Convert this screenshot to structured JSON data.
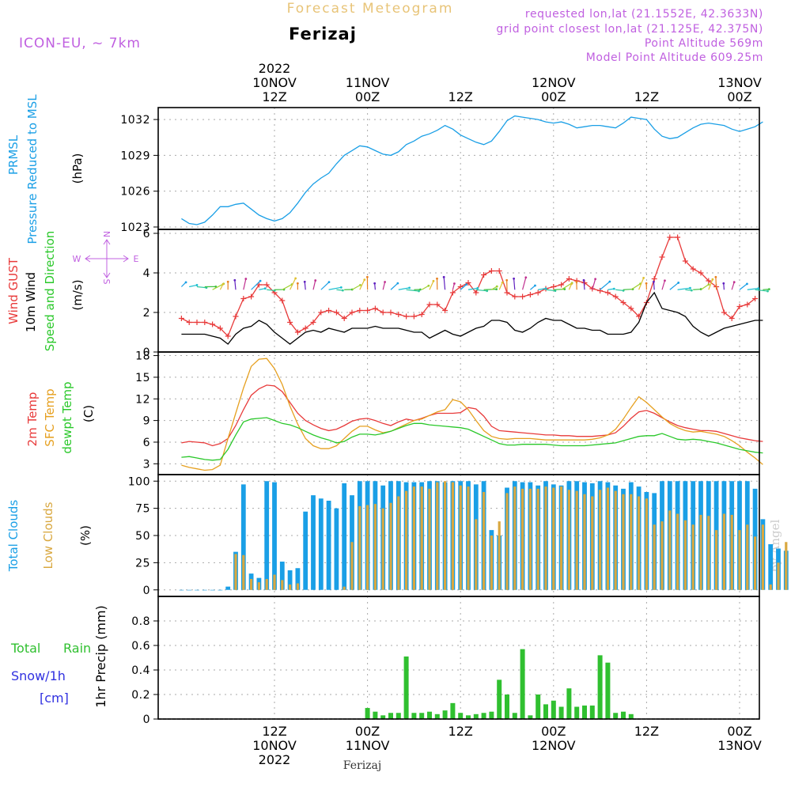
{
  "header": {
    "title": "Forecast Meteogram",
    "location": "Ferizaj",
    "model": "ICON-EU, ~ 7km",
    "requested": "requested lon,lat (21.1552E, 42.3633N)",
    "grid_point": "grid point closest lon,lat (21.125E, 42.375N)",
    "point_altitude": "Point Altitude 569m",
    "model_altitude": "Model Point Altitude 609.25m",
    "credit": "by Angel",
    "footer_location": "Ferizaj"
  },
  "colors": {
    "pressure": "#1a9fe6",
    "gust": "#e83a3a",
    "wind": "#000000",
    "temp": "#e83a3a",
    "sfc": "#e6a020",
    "dew": "#2ac82a",
    "total_clouds": "#1a9fe6",
    "low_clouds": "#d9a840",
    "rain": "#30c030",
    "snow": "#3030e0",
    "purple": "#c060e0",
    "title_gold": "#e8c478"
  },
  "time_axis": {
    "top_labels": [
      {
        "day": "10NOV",
        "hour": "12Z",
        "year": "2022",
        "h": 12
      },
      {
        "day": "11NOV",
        "hour": "00Z",
        "h": 24
      },
      {
        "day": "",
        "hour": "12Z",
        "h": 36
      },
      {
        "day": "12NOV",
        "hour": "00Z",
        "h": 48
      },
      {
        "day": "",
        "hour": "12Z",
        "h": 60
      },
      {
        "day": "13NOV",
        "hour": "00Z",
        "h": 72
      }
    ],
    "bottom_labels": [
      {
        "hour": "12Z",
        "day": "10NOV",
        "year": "2022",
        "h": 12
      },
      {
        "hour": "00Z",
        "day": "11NOV",
        "h": 24
      },
      {
        "hour": "12Z",
        "day": "",
        "h": 36
      },
      {
        "hour": "00Z",
        "day": "12NOV",
        "h": 48
      },
      {
        "hour": "12Z",
        "day": "",
        "h": 60
      },
      {
        "hour": "00Z",
        "day": "13NOV",
        "h": 72
      }
    ]
  },
  "chart_data": [
    {
      "type": "line",
      "title": "PRMSL Pressure Reduced to MSL",
      "ylabel": "(hPa)",
      "label_lines": [
        "PRMSL",
        "Pressure Reduced to MSL"
      ],
      "unit": "(hPa)",
      "ylim": [
        1022.8,
        1033
      ],
      "yticks": [
        1023,
        1026,
        1029,
        1032
      ],
      "x_start_hour": 0,
      "x_step": 1,
      "series": [
        {
          "name": "PRMSL",
          "values": [
            1023.7,
            1023.3,
            1023.2,
            1023.4,
            1024.0,
            1024.7,
            1024.7,
            1024.9,
            1025.0,
            1024.5,
            1024.0,
            1023.7,
            1023.5,
            1023.7,
            1024.2,
            1025.0,
            1025.9,
            1026.6,
            1027.1,
            1027.5,
            1028.3,
            1029.0,
            1029.4,
            1029.8,
            1029.7,
            1029.4,
            1029.1,
            1029.0,
            1029.3,
            1029.9,
            1030.2,
            1030.6,
            1030.8,
            1031.1,
            1031.5,
            1031.2,
            1030.7,
            1030.4,
            1030.1,
            1029.9,
            1030.2,
            1031.0,
            1031.9,
            1032.3,
            1032.2,
            1032.1,
            1032.0,
            1031.8,
            1031.7,
            1031.8,
            1031.6,
            1031.3,
            1031.4,
            1031.5,
            1031.5,
            1031.4,
            1031.3,
            1031.7,
            1032.2,
            1032.1,
            1032.0,
            1031.2,
            1030.6,
            1030.4,
            1030.5,
            1030.9,
            1031.3,
            1031.6,
            1031.7,
            1031.6,
            1031.5,
            1031.2,
            1031.0,
            1031.2,
            1031.4,
            1031.8
          ]
        }
      ]
    },
    {
      "type": "line",
      "title": "Wind GUST / 10m Wind Speed and Direction",
      "ylabel": "(m/s)",
      "label_lines": [
        "Wind GUST",
        "10m Wind",
        "Speed and Direction"
      ],
      "unit": "(m/s)",
      "compass": {
        "n": "N",
        "s": "S",
        "w": "W",
        "e": "E"
      },
      "ylim": [
        0,
        6.2
      ],
      "yticks": [
        0,
        2,
        4,
        6
      ],
      "x_start_hour": 0,
      "x_step": 1,
      "series": [
        {
          "name": "Wind GUST",
          "values": [
            1.7,
            1.5,
            1.5,
            1.5,
            1.4,
            1.2,
            0.8,
            1.8,
            2.7,
            2.8,
            3.4,
            3.4,
            3.0,
            2.6,
            1.5,
            1.0,
            1.2,
            1.5,
            2.0,
            2.1,
            2.0,
            1.7,
            2.0,
            2.1,
            2.1,
            2.2,
            2.0,
            2.0,
            1.9,
            1.8,
            1.8,
            1.9,
            2.4,
            2.4,
            2.1,
            3.0,
            3.3,
            3.5,
            3.0,
            3.9,
            4.1,
            4.1,
            3.0,
            2.8,
            2.8,
            2.9,
            3.0,
            3.2,
            3.3,
            3.4,
            3.7,
            3.6,
            3.5,
            3.2,
            3.1,
            3.0,
            2.8,
            2.5,
            2.2,
            1.8,
            2.5,
            3.7,
            4.8,
            5.8,
            5.8,
            4.6,
            4.2,
            4.0,
            3.6,
            3.3,
            2.0,
            1.7,
            2.3,
            2.4,
            2.7
          ]
        },
        {
          "name": "10m Wind",
          "values": [
            0.9,
            0.9,
            0.9,
            0.9,
            0.8,
            0.7,
            0.4,
            0.9,
            1.2,
            1.3,
            1.6,
            1.4,
            1.0,
            0.7,
            0.4,
            0.7,
            1.0,
            1.1,
            1.0,
            1.2,
            1.1,
            1.0,
            1.2,
            1.2,
            1.2,
            1.3,
            1.2,
            1.2,
            1.2,
            1.1,
            1.0,
            1.0,
            0.7,
            0.9,
            1.1,
            0.9,
            0.8,
            1.0,
            1.2,
            1.3,
            1.6,
            1.6,
            1.5,
            1.1,
            1.0,
            1.2,
            1.5,
            1.7,
            1.6,
            1.6,
            1.4,
            1.2,
            1.2,
            1.1,
            1.1,
            0.9,
            0.9,
            0.9,
            1.0,
            1.5,
            2.5,
            3.0,
            2.2,
            2.1,
            2.0,
            1.8,
            1.3,
            1.0,
            0.8,
            1.0,
            1.2,
            1.3,
            1.4,
            1.5,
            1.6,
            1.6
          ]
        }
      ]
    },
    {
      "type": "line",
      "title": "2m Temp / SFC Temp / dewpt Temp",
      "ylabel": "(C)",
      "label_lines": [
        "2m Temp",
        "SFC Temp",
        "dewpt Temp"
      ],
      "unit": "(C)",
      "ylim": [
        1.5,
        18.5
      ],
      "yticks": [
        3,
        6,
        9,
        12,
        15,
        18
      ],
      "x_start_hour": 0,
      "x_step": 1,
      "series": [
        {
          "name": "2m Temp",
          "values": [
            5.9,
            6.1,
            6.0,
            5.9,
            5.5,
            5.8,
            6.5,
            8.3,
            10.5,
            12.5,
            13.4,
            13.9,
            13.8,
            13.0,
            11.5,
            10.0,
            9.0,
            8.4,
            7.9,
            7.6,
            7.8,
            8.3,
            8.9,
            9.2,
            9.3,
            9.0,
            8.6,
            8.3,
            8.8,
            9.2,
            9.0,
            9.3,
            9.7,
            10.0,
            10.0,
            10.0,
            10.1,
            10.8,
            10.6,
            9.6,
            8.2,
            7.6,
            7.5,
            7.4,
            7.3,
            7.2,
            7.1,
            7.0,
            7.0,
            6.9,
            6.9,
            6.8,
            6.8,
            6.8,
            6.9,
            7.0,
            7.3,
            8.2,
            9.3,
            10.2,
            10.4,
            10.0,
            9.4,
            8.8,
            8.3,
            8.0,
            7.8,
            7.6,
            7.6,
            7.5,
            7.2,
            6.9,
            6.6,
            6.4,
            6.2,
            6.1
          ]
        },
        {
          "name": "SFC Temp",
          "values": [
            2.8,
            2.5,
            2.3,
            2.1,
            2.2,
            2.8,
            6.5,
            10.0,
            13.5,
            16.5,
            17.5,
            17.6,
            16.2,
            14.0,
            11.0,
            8.5,
            6.5,
            5.5,
            5.1,
            5.1,
            5.5,
            6.5,
            7.5,
            8.2,
            8.2,
            7.7,
            7.3,
            7.5,
            8.0,
            8.5,
            9.0,
            9.2,
            9.7,
            10.2,
            10.5,
            11.9,
            11.6,
            10.5,
            9.0,
            7.6,
            6.8,
            6.5,
            6.4,
            6.5,
            6.5,
            6.5,
            6.4,
            6.3,
            6.3,
            6.3,
            6.3,
            6.3,
            6.3,
            6.4,
            6.6,
            7.0,
            7.8,
            9.2,
            10.8,
            12.3,
            11.5,
            10.5,
            9.5,
            8.6,
            8.0,
            7.6,
            7.4,
            7.5,
            7.3,
            7.1,
            6.8,
            6.2,
            5.5,
            4.6,
            3.8,
            2.9
          ]
        },
        {
          "name": "dewpt Temp",
          "values": [
            3.9,
            4.0,
            3.8,
            3.6,
            3.5,
            3.6,
            5.0,
            7.0,
            8.8,
            9.2,
            9.3,
            9.4,
            9.0,
            8.6,
            8.4,
            8.0,
            7.5,
            7.0,
            6.6,
            6.3,
            5.9,
            6.1,
            6.7,
            7.1,
            7.1,
            7.0,
            7.2,
            7.5,
            7.9,
            8.3,
            8.6,
            8.6,
            8.4,
            8.3,
            8.2,
            8.1,
            8.0,
            7.8,
            7.3,
            6.8,
            6.3,
            5.8,
            5.6,
            5.6,
            5.7,
            5.7,
            5.7,
            5.7,
            5.6,
            5.5,
            5.5,
            5.5,
            5.5,
            5.6,
            5.7,
            5.8,
            5.9,
            6.2,
            6.5,
            6.8,
            6.9,
            6.9,
            7.2,
            6.8,
            6.4,
            6.3,
            6.4,
            6.3,
            6.1,
            5.9,
            5.6,
            5.3,
            5.0,
            4.8,
            4.6,
            4.5
          ]
        }
      ]
    },
    {
      "type": "bar",
      "title": "Total Clouds / Low Clouds",
      "ylabel": "(%)",
      "label_lines": [
        "Total Clouds",
        "Low Clouds"
      ],
      "unit": "(%)",
      "ylim": [
        -6,
        106
      ],
      "yticks": [
        0,
        25,
        50,
        75,
        100
      ],
      "x_start_hour": 0,
      "x_step": 1,
      "series": [
        {
          "name": "Total Clouds",
          "values": [
            0,
            0,
            0,
            0,
            0,
            0,
            3,
            35,
            97,
            15,
            11,
            100,
            99,
            26,
            18,
            20,
            72,
            87,
            84,
            82,
            75,
            98,
            87,
            100,
            100,
            100,
            96,
            100,
            100,
            99,
            99,
            99,
            100,
            100,
            99,
            100,
            100,
            100,
            97,
            100,
            55,
            50,
            94,
            100,
            99,
            99,
            96,
            100,
            97,
            96,
            100,
            100,
            99,
            98,
            100,
            99,
            96,
            93,
            99,
            95,
            90,
            89,
            100,
            100,
            100,
            100,
            100,
            100,
            100,
            100,
            100,
            100,
            100,
            100,
            93,
            65,
            42,
            38,
            36,
            32
          ]
        },
        {
          "name": "Low Clouds",
          "values": [
            0,
            0,
            0,
            0,
            0,
            0,
            0,
            33,
            32,
            10,
            7,
            10,
            14,
            9,
            5,
            6,
            0,
            0,
            0,
            0,
            0,
            3,
            44,
            77,
            78,
            79,
            75,
            80,
            86,
            91,
            95,
            95,
            93,
            99,
            100,
            99,
            96,
            95,
            65,
            90,
            50,
            63,
            89,
            95,
            93,
            93,
            93,
            95,
            94,
            95,
            92,
            91,
            88,
            86,
            92,
            94,
            91,
            88,
            88,
            86,
            84,
            60,
            63,
            73,
            70,
            64,
            60,
            69,
            68,
            55,
            70,
            69,
            55,
            60,
            49,
            60,
            5,
            25,
            44,
            38
          ]
        }
      ]
    },
    {
      "type": "bar",
      "title": "1hr Precip (mm)",
      "ylabel": "1hr Precip (mm)",
      "label_lines": [
        "Total",
        "Rain",
        "Snow/1h",
        "[cm]"
      ],
      "unit": "1hr Precip (mm)",
      "ylim": [
        0,
        1.0
      ],
      "yticks": [
        0,
        0.2,
        0.4,
        0.6,
        0.8
      ],
      "x_start_hour": 0,
      "x_step": 1,
      "series": [
        {
          "name": "Total Rain",
          "values": [
            0,
            0,
            0,
            0,
            0,
            0,
            0,
            0,
            0,
            0,
            0,
            0,
            0,
            0,
            0,
            0,
            0,
            0,
            0,
            0,
            0,
            0,
            0,
            0,
            0.09,
            0.06,
            0.03,
            0.05,
            0.05,
            0.51,
            0.05,
            0.05,
            0.06,
            0.04,
            0.07,
            0.13,
            0.05,
            0.03,
            0.04,
            0.05,
            0.06,
            0.32,
            0.2,
            0.05,
            0.57,
            0.03,
            0.2,
            0.12,
            0.15,
            0.1,
            0.25,
            0.1,
            0.11,
            0.11,
            0.52,
            0.46,
            0.05,
            0.06,
            0.04,
            0,
            0,
            0,
            0,
            0,
            0,
            0,
            0,
            0,
            0,
            0,
            0,
            0,
            0,
            0,
            0,
            0
          ]
        },
        {
          "name": "Snow/1h",
          "values": [
            0,
            0,
            0,
            0,
            0,
            0,
            0,
            0,
            0,
            0,
            0,
            0,
            0,
            0,
            0,
            0,
            0,
            0,
            0,
            0,
            0,
            0,
            0,
            0,
            0,
            0,
            0,
            0,
            0,
            0,
            0,
            0,
            0,
            0,
            0,
            0,
            0,
            0,
            0,
            0,
            0,
            0,
            0,
            0,
            0,
            0,
            0,
            0,
            0,
            0,
            0,
            0,
            0,
            0,
            0,
            0,
            0,
            0,
            0,
            0,
            0,
            0,
            0,
            0,
            0,
            0,
            0,
            0,
            0,
            0,
            0,
            0,
            0,
            0,
            0,
            0
          ]
        }
      ]
    }
  ]
}
